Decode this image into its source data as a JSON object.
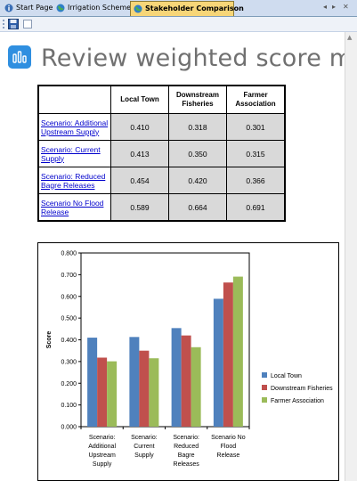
{
  "tabs": [
    {
      "label": "Start Page",
      "icon": "info-icon"
    },
    {
      "label": "Irrigation Schemes",
      "icon": "globe-icon"
    },
    {
      "label": "Stakeholder Comparison",
      "icon": "globe-icon",
      "active": true
    }
  ],
  "toolbar": {
    "save_icon": "save-icon",
    "blank_icon": "blank-doc-icon"
  },
  "page": {
    "title": "Review weighted score matr",
    "icon": "bar-chart-icon"
  },
  "table": {
    "columns": [
      "Local Town",
      "Downstream\nFisheries",
      "Farmer\nAssociation"
    ],
    "rows": [
      {
        "scenario": "Scenario: Additional Upstream Supply",
        "values": [
          "0.410",
          "0.318",
          "0.301"
        ]
      },
      {
        "scenario": "Scenario: Current Supply",
        "values": [
          "0.413",
          "0.350",
          "0.315"
        ]
      },
      {
        "scenario": "Scenario: Reduced Bagre Releases",
        "values": [
          "0.454",
          "0.420",
          "0.366"
        ]
      },
      {
        "scenario": "Scenario No Flood Release",
        "values": [
          "0.589",
          "0.664",
          "0.691"
        ]
      }
    ]
  },
  "chart_data": {
    "type": "bar",
    "categories": [
      "Scenario: Additional Upstream Supply",
      "Scenario: Current Supply",
      "Scenario: Reduced Bagre Releases",
      "Scenario No Flood Release"
    ],
    "category_lines": [
      [
        "Scenario:",
        "Additional",
        "Upstream",
        "Supply"
      ],
      [
        "Scenario:",
        "Current",
        "Supply"
      ],
      [
        "Scenario:",
        "Reduced",
        "Bagre",
        "Releases"
      ],
      [
        "Scenario No",
        "Flood",
        "Release"
      ]
    ],
    "series": [
      {
        "name": "Local Town",
        "color": "#4f81bd",
        "values": [
          0.41,
          0.413,
          0.454,
          0.589
        ]
      },
      {
        "name": "Downstream Fisheries",
        "color": "#c0504d",
        "values": [
          0.318,
          0.35,
          0.42,
          0.664
        ]
      },
      {
        "name": "Farmer Association",
        "color": "#9bbb59",
        "values": [
          0.301,
          0.315,
          0.366,
          0.691
        ]
      }
    ],
    "ylabel": "Score",
    "ylim": [
      0,
      0.8
    ],
    "yticks": [
      "0.000",
      "0.100",
      "0.200",
      "0.300",
      "0.400",
      "0.500",
      "0.600",
      "0.700",
      "0.800"
    ],
    "legend": "right",
    "grid": false
  }
}
